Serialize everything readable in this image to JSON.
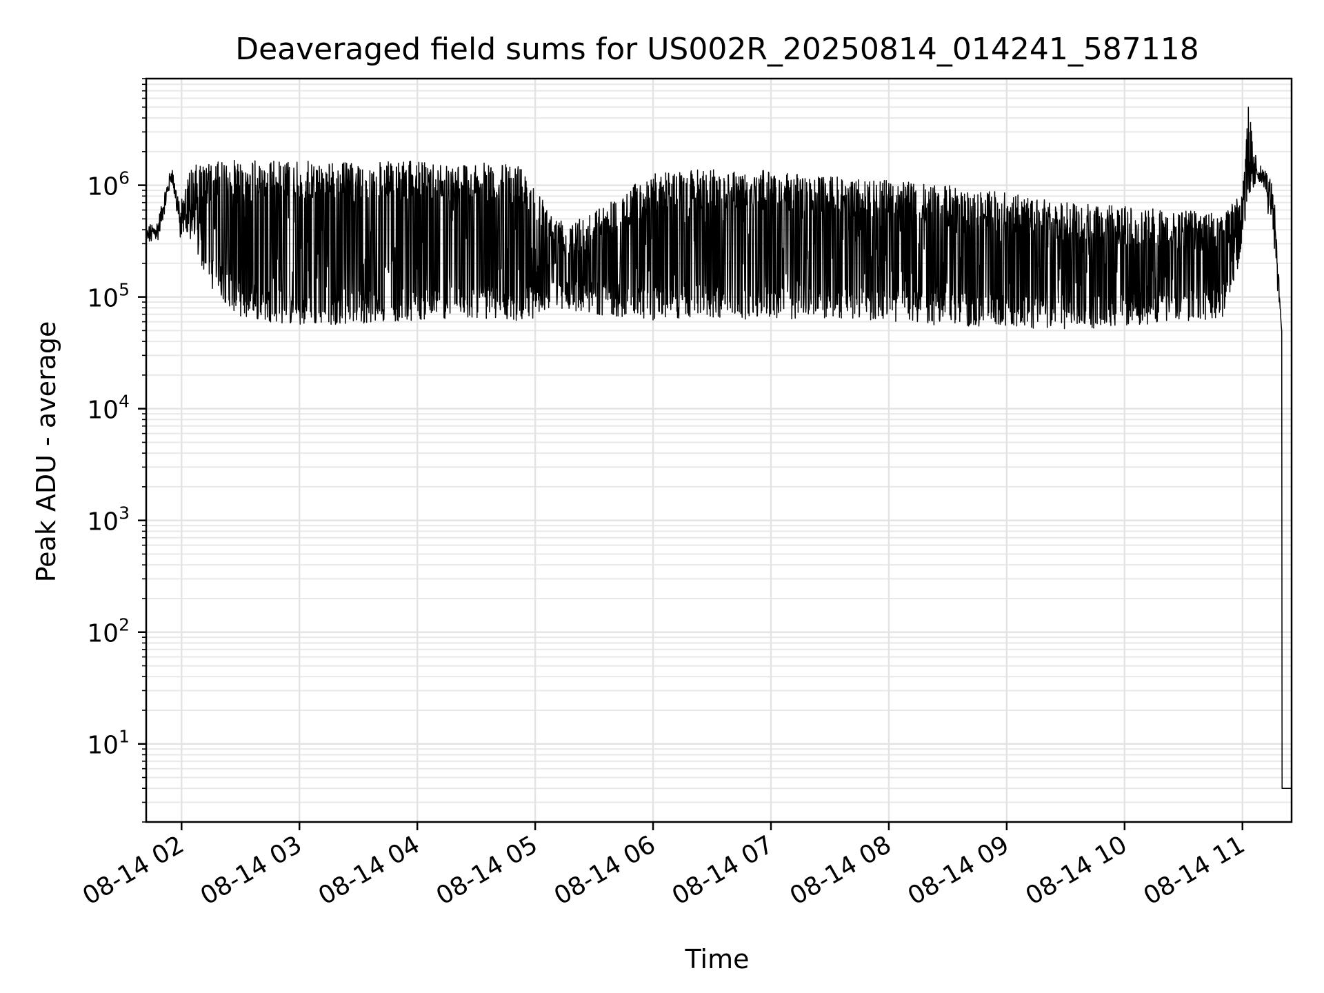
{
  "chart_data": {
    "type": "line",
    "title": "Deaveraged field sums for US002R_20250814_014241_587118",
    "xlabel": "Time",
    "ylabel": "Peak ADU - average",
    "yscale": "log",
    "ylim": [
      2,
      9000000
    ],
    "xlim": [
      "2025-08-14T01:42:00",
      "2025-08-14T11:25:00"
    ],
    "grid": true,
    "x_tick_labels": [
      "08-14 02",
      "08-14 03",
      "08-14 04",
      "08-14 05",
      "08-14 06",
      "08-14 07",
      "08-14 08",
      "08-14 09",
      "08-14 10",
      "08-14 11"
    ],
    "y_ticks": [
      {
        "base": "10",
        "exp": "1",
        "value": 10
      },
      {
        "base": "10",
        "exp": "2",
        "value": 100
      },
      {
        "base": "10",
        "exp": "3",
        "value": 1000
      },
      {
        "base": "10",
        "exp": "4",
        "value": 10000
      },
      {
        "base": "10",
        "exp": "5",
        "value": 100000
      },
      {
        "base": "10",
        "exp": "6",
        "value": 1000000
      }
    ],
    "line_color": "#000000",
    "series": [
      {
        "x": [
          "2025-08-14T01:42:00",
          "2025-08-14T01:48:00",
          "2025-08-14T01:55:00",
          "2025-08-14T01:59:00",
          "2025-08-14T02:05:00",
          "2025-08-14T02:15:00",
          "2025-08-14T02:30:00",
          "2025-08-14T03:00:00",
          "2025-08-14T03:30:00",
          "2025-08-14T04:00:00",
          "2025-08-14T04:30:00",
          "2025-08-14T04:55:00",
          "2025-08-14T05:10:00",
          "2025-08-14T05:30:00",
          "2025-08-14T06:00:00",
          "2025-08-14T06:30:00",
          "2025-08-14T07:00:00",
          "2025-08-14T07:30:00",
          "2025-08-14T08:00:00",
          "2025-08-14T08:30:00",
          "2025-08-14T09:00:00",
          "2025-08-14T09:30:00",
          "2025-08-14T10:00:00",
          "2025-08-14T10:30:00",
          "2025-08-14T10:50:00",
          "2025-08-14T11:00:00",
          "2025-08-14T11:03:00",
          "2025-08-14T11:08:00",
          "2025-08-14T11:12:00",
          "2025-08-14T11:16:00",
          "2025-08-14T11:20:00",
          "2025-08-14T11:25:00"
        ],
        "low": [
          300000,
          320000,
          1100000,
          400000,
          300000,
          120000,
          65000,
          55000,
          58000,
          62000,
          65000,
          60000,
          80000,
          70000,
          62000,
          65000,
          62000,
          65000,
          60000,
          55000,
          52000,
          50000,
          55000,
          60000,
          65000,
          250000,
          800000,
          1100000,
          900000,
          300000,
          50000,
          4
        ],
        "high": [
          400000,
          500000,
          1500000,
          700000,
          1500000,
          1600000,
          1700000,
          1650000,
          1600000,
          1650000,
          1600000,
          1500000,
          500000,
          600000,
          1300000,
          1400000,
          1350000,
          1200000,
          1100000,
          1000000,
          850000,
          700000,
          650000,
          600000,
          600000,
          900000,
          5000000,
          1500000,
          1300000,
          1000000,
          50000,
          4
        ]
      }
    ]
  }
}
